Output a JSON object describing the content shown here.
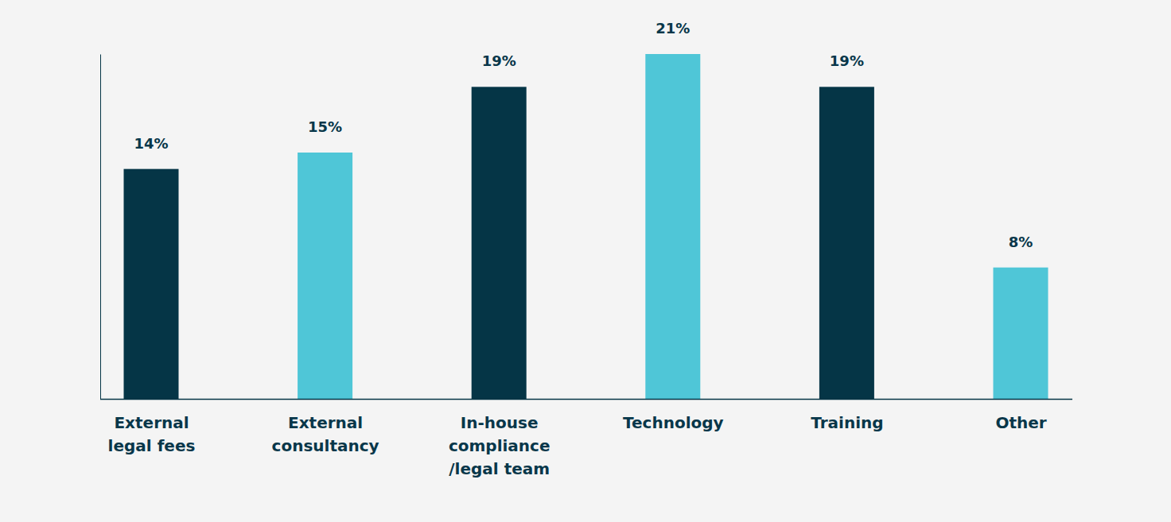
{
  "chart_data": {
    "type": "bar",
    "categories": [
      "External\nlegal fees",
      "External\nconsultancy",
      "In-house\ncompliance\n/legal team",
      "Technology",
      "Training",
      "Other"
    ],
    "values": [
      14,
      15,
      19,
      21,
      19,
      8
    ],
    "value_labels": [
      "14%",
      "15%",
      "19%",
      "21%",
      "19%",
      "8%"
    ],
    "colors": [
      "#053546",
      "#4fc6d7",
      "#053546",
      "#4fc6d7",
      "#053546",
      "#4fc6d7"
    ],
    "ylim": [
      0,
      21
    ],
    "yticks": [
      0
    ],
    "grid": false,
    "data_labels": true,
    "tick_labels": "x"
  }
}
